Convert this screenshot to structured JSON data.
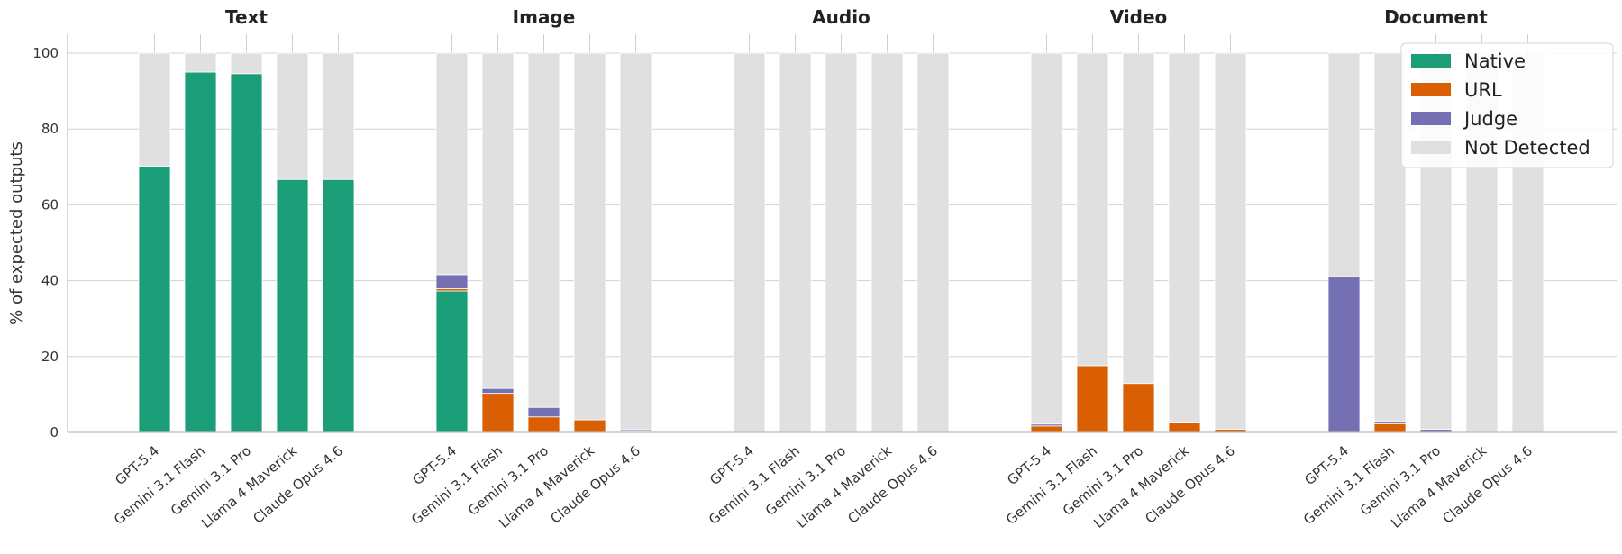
{
  "chart_data": {
    "type": "bar",
    "stacked": true,
    "facets": [
      "Text",
      "Image",
      "Audio",
      "Video",
      "Document"
    ],
    "categories": [
      "GPT-5.4",
      "Gemini 3.1 Flash",
      "Gemini 3.1 Pro",
      "Llama 4 Maverick",
      "Claude Opus 4.6"
    ],
    "ylabel": "% of expected outputs",
    "xlabel": "",
    "ylim": [
      0,
      105
    ],
    "yticks": [
      0,
      20,
      40,
      60,
      80,
      100
    ],
    "grid": true,
    "legend_position": "top-right",
    "series": [
      {
        "name": "Native",
        "color": "#1b9e77",
        "values": {
          "Text": [
            70.2,
            95.0,
            94.6,
            66.7,
            66.7
          ],
          "Image": [
            37.3,
            0,
            0,
            0,
            0
          ],
          "Audio": [
            0,
            0,
            0,
            0,
            0
          ],
          "Video": [
            0,
            0,
            0,
            0,
            0
          ],
          "Document": [
            0,
            0,
            0,
            0,
            0
          ]
        }
      },
      {
        "name": "URL",
        "color": "#d95f02",
        "values": {
          "Text": [
            0,
            0,
            0,
            0,
            0
          ],
          "Image": [
            0.6,
            10.3,
            4.1,
            3.3,
            0.2
          ],
          "Audio": [
            0,
            0,
            0,
            0,
            0
          ],
          "Video": [
            1.7,
            17.6,
            12.9,
            2.5,
            0.8
          ],
          "Document": [
            0,
            2.3,
            0,
            0,
            0
          ]
        }
      },
      {
        "name": "Judge",
        "color": "#7570b3",
        "values": {
          "Text": [
            0,
            0,
            0,
            0,
            0
          ],
          "Image": [
            3.7,
            1.3,
            2.5,
            0,
            0.5
          ],
          "Audio": [
            0,
            0,
            0,
            0,
            0
          ],
          "Video": [
            0.5,
            0,
            0,
            0,
            0
          ],
          "Document": [
            41.1,
            0.7,
            0.8,
            0,
            0
          ]
        }
      },
      {
        "name": "Not Detected",
        "color": "#e0e0e0",
        "values": {
          "Text": [
            29.8,
            5.0,
            5.4,
            33.3,
            33.3
          ],
          "Image": [
            58.4,
            88.4,
            93.4,
            96.7,
            99.3
          ],
          "Audio": [
            100,
            100,
            100,
            100,
            100
          ],
          "Video": [
            97.8,
            82.4,
            87.1,
            97.5,
            99.2
          ],
          "Document": [
            58.9,
            97.0,
            99.2,
            100,
            100
          ]
        }
      }
    ]
  }
}
